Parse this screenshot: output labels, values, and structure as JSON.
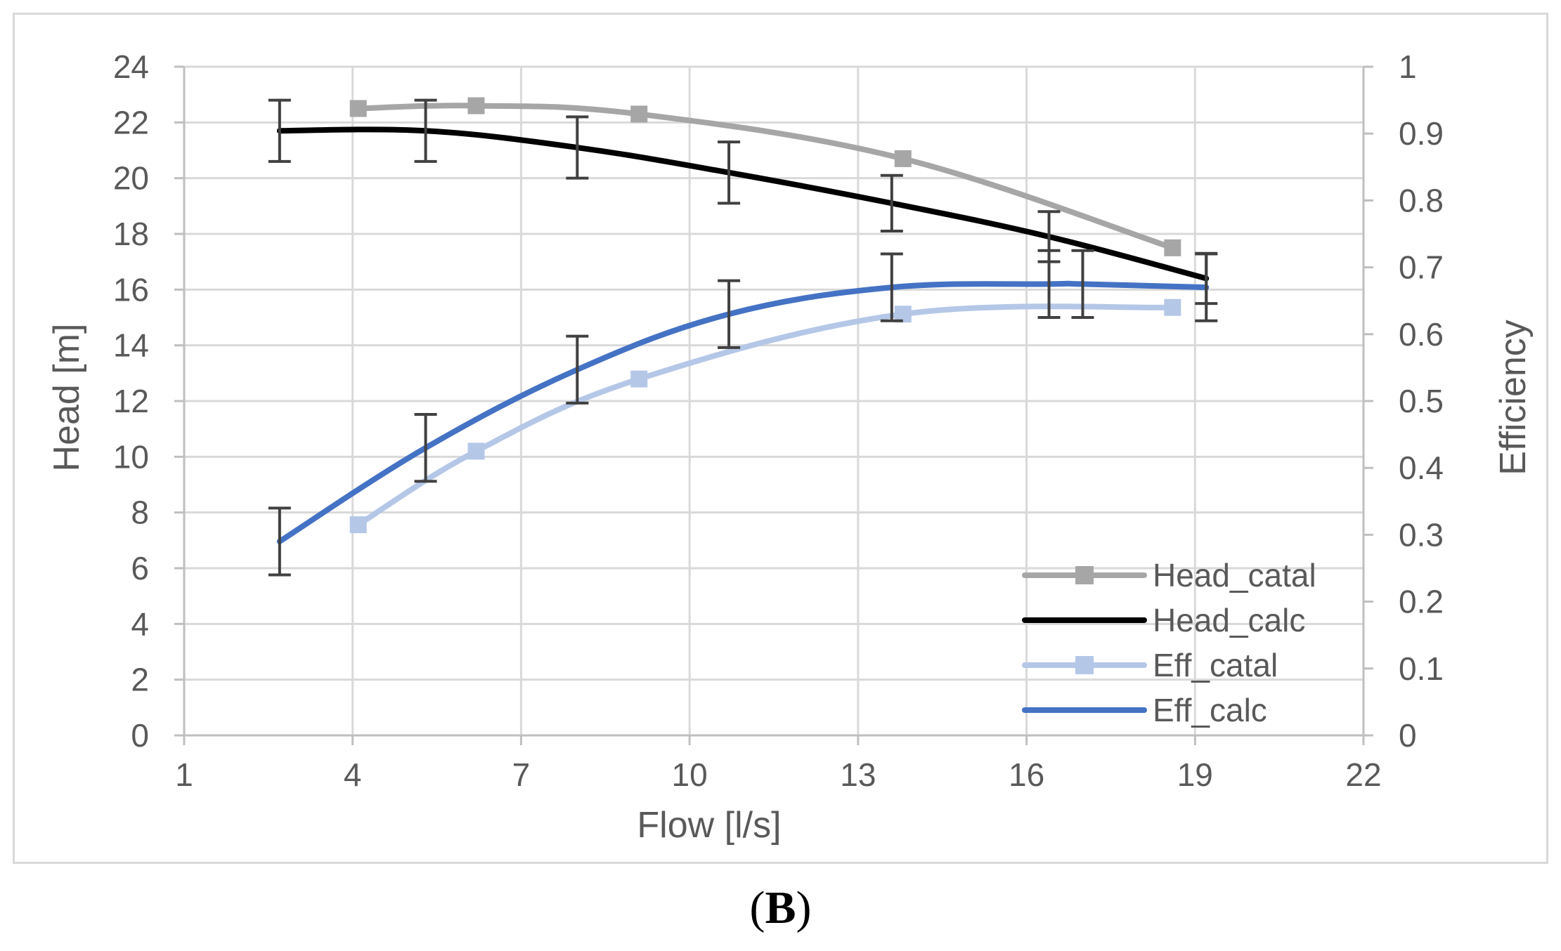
{
  "panel_label": {
    "open": "(",
    "letter": "B",
    "close": ")"
  },
  "chart_data": {
    "type": "line",
    "xlabel": "Flow [l/s]",
    "ylabel": "Head [m]",
    "y2label": "Efficiency",
    "xlim": [
      1,
      22
    ],
    "ylim": [
      0,
      24
    ],
    "y2lim": [
      0,
      1
    ],
    "xticks": [
      "1",
      "4",
      "7",
      "10",
      "13",
      "16",
      "19",
      "22"
    ],
    "yticks": [
      "0",
      "2",
      "4",
      "6",
      "8",
      "10",
      "12",
      "14",
      "16",
      "18",
      "20",
      "22",
      "24"
    ],
    "y2ticks": [
      "0",
      "0.1",
      "0.2",
      "0.3",
      "0.4",
      "0.5",
      "0.6",
      "0.7",
      "0.8",
      "0.9",
      "1"
    ],
    "grid": true,
    "legend_position": "bottom-right",
    "series": [
      {
        "name": "Head_catal",
        "axis": "left",
        "color": "#a6a6a6",
        "markers": true,
        "x": [
          4.1,
          6.2,
          9.1,
          13.8,
          18.6
        ],
        "y": [
          22.5,
          22.6,
          22.3,
          20.7,
          17.5
        ]
      },
      {
        "name": "Head_calc",
        "axis": "left",
        "color": "#000000",
        "markers": false,
        "x": [
          2.7,
          5.3,
          8.0,
          10.7,
          13.6,
          16.4,
          19.2
        ],
        "y": [
          21.7,
          21.7,
          21.1,
          20.2,
          19.1,
          17.9,
          16.4
        ],
        "error": [
          1.1,
          1.1,
          1.1,
          1.1,
          1.0,
          0.9,
          0.9
        ]
      },
      {
        "name": "Eff_catal",
        "axis": "right",
        "color": "#b4c7e7",
        "markers": true,
        "x": [
          4.1,
          6.2,
          9.1,
          13.8,
          18.6
        ],
        "y": [
          0.315,
          0.425,
          0.533,
          0.63,
          0.64
        ]
      },
      {
        "name": "Eff_calc",
        "axis": "right",
        "color": "#4472c4",
        "markers": false,
        "x": [
          2.7,
          5.3,
          8.0,
          10.7,
          13.6,
          16.4,
          17.0,
          19.2
        ],
        "y": [
          0.29,
          0.43,
          0.547,
          0.63,
          0.67,
          0.675,
          0.675,
          0.67
        ],
        "error": [
          0.05,
          0.05,
          0.05,
          0.05,
          0.05,
          0.05,
          0.05,
          0.05
        ]
      }
    ]
  }
}
